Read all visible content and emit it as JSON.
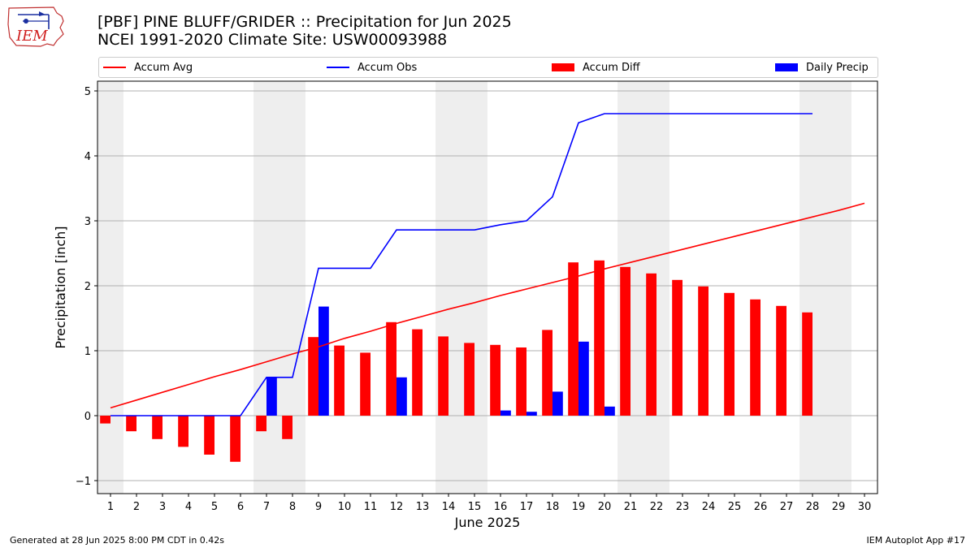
{
  "header": {
    "title_line1": "[PBF] PINE BLUFF/GRIDER :: Precipitation for Jun 2025",
    "title_line2": "NCEI 1991-2020 Climate Site: USW00093988",
    "logo_text": "IEM"
  },
  "legend": {
    "accum_avg": "Accum Avg",
    "accum_obs": "Accum Obs",
    "accum_diff": "Accum Diff",
    "daily_precip": "Daily Precip"
  },
  "footer": {
    "left": "Generated at 28 Jun 2025 8:00 PM CDT in 0.42s",
    "right": "IEM Autoplot App #17"
  },
  "colors": {
    "avg": "#ff0000",
    "obs": "#0000ff",
    "diff": "#ff0000",
    "daily": "#0000ff",
    "weekend_band": "#eeeeee",
    "grid": "#b0b0b0"
  },
  "chart_data": {
    "type": "bar",
    "xlabel": "June 2025",
    "ylabel": "Precipitation [inch]",
    "ylim": [
      -1.2,
      5.15
    ],
    "xlim": [
      0.5,
      30.5
    ],
    "yticks": [
      -1,
      0,
      1,
      2,
      3,
      4,
      5
    ],
    "x": [
      1,
      2,
      3,
      4,
      5,
      6,
      7,
      8,
      9,
      10,
      11,
      12,
      13,
      14,
      15,
      16,
      17,
      18,
      19,
      20,
      21,
      22,
      23,
      24,
      25,
      26,
      27,
      28,
      29,
      30
    ],
    "weekend_days": [
      1,
      7,
      8,
      14,
      15,
      21,
      22,
      28,
      29
    ],
    "grid": "horizontal",
    "legend_position": "top",
    "series": [
      {
        "name": "Accum Avg",
        "type": "line",
        "x": [
          1,
          2,
          3,
          4,
          5,
          6,
          7,
          8,
          9,
          10,
          11,
          12,
          13,
          14,
          15,
          16,
          17,
          18,
          19,
          20,
          21,
          22,
          23,
          24,
          25,
          26,
          27,
          28,
          29,
          30
        ],
        "values": [
          0.12,
          0.24,
          0.36,
          0.48,
          0.6,
          0.71,
          0.83,
          0.95,
          1.06,
          1.19,
          1.3,
          1.42,
          1.53,
          1.64,
          1.74,
          1.85,
          1.95,
          2.05,
          2.15,
          2.26,
          2.36,
          2.46,
          2.56,
          2.66,
          2.76,
          2.86,
          2.96,
          3.06,
          3.16,
          3.27
        ]
      },
      {
        "name": "Accum Obs",
        "type": "line",
        "x": [
          1,
          2,
          3,
          4,
          5,
          6,
          7,
          8,
          9,
          10,
          11,
          12,
          13,
          14,
          15,
          16,
          17,
          18,
          19,
          20,
          21,
          22,
          23,
          24,
          25,
          26,
          27,
          28
        ],
        "values": [
          0,
          0,
          0,
          0,
          0,
          0,
          0.59,
          0.59,
          2.27,
          2.27,
          2.27,
          2.86,
          2.86,
          2.86,
          2.86,
          2.94,
          3.0,
          3.37,
          4.51,
          4.65,
          4.65,
          4.65,
          4.65,
          4.65,
          4.65,
          4.65,
          4.65,
          4.65
        ]
      },
      {
        "name": "Accum Diff",
        "type": "bar",
        "x": [
          1,
          2,
          3,
          4,
          5,
          6,
          7,
          8,
          9,
          10,
          11,
          12,
          13,
          14,
          15,
          16,
          17,
          18,
          19,
          20,
          21,
          22,
          23,
          24,
          25,
          26,
          27,
          28
        ],
        "values": [
          -0.12,
          -0.24,
          -0.36,
          -0.48,
          -0.6,
          -0.71,
          -0.24,
          -0.36,
          1.21,
          1.08,
          0.97,
          1.44,
          1.33,
          1.22,
          1.12,
          1.09,
          1.05,
          1.32,
          2.36,
          2.39,
          2.29,
          2.19,
          2.09,
          1.99,
          1.89,
          1.79,
          1.69,
          1.59
        ]
      },
      {
        "name": "Daily Precip",
        "type": "bar",
        "x": [
          1,
          2,
          3,
          4,
          5,
          6,
          7,
          8,
          9,
          10,
          11,
          12,
          13,
          14,
          15,
          16,
          17,
          18,
          19,
          20,
          21,
          22,
          23,
          24,
          25,
          26,
          27,
          28
        ],
        "values": [
          0,
          0,
          0,
          0,
          0,
          0,
          0.59,
          0,
          1.68,
          0,
          0,
          0.59,
          0,
          0,
          0,
          0.08,
          0.06,
          0.37,
          1.14,
          0.14,
          0,
          0,
          0,
          0,
          0,
          0,
          0,
          0
        ]
      }
    ]
  }
}
